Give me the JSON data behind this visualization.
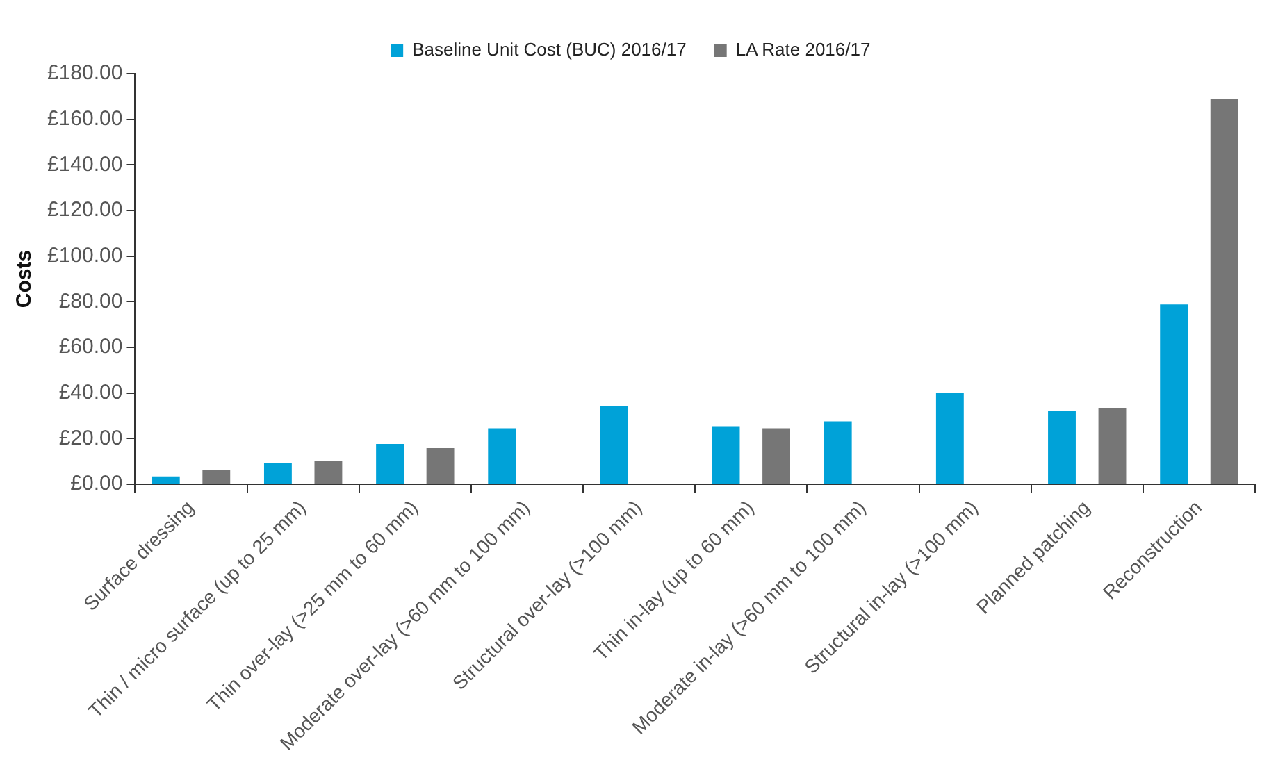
{
  "chart_data": {
    "type": "bar",
    "ylabel": "Costs",
    "categories": [
      "Surface dressing",
      "Thin / micro surface (up to 25 mm)",
      "Thin over-lay (>25 mm to 60 mm)",
      "Moderate over-lay (>60 mm to 100 mm)",
      "Structural over-lay (>100 mm)",
      "Thin in-lay (up to 60 mm)",
      "Moderate in-lay (>60 mm to 100 mm)",
      "Structural in-lay (>100 mm)",
      "Planned patching",
      "Reconstruction"
    ],
    "series": [
      {
        "name": "Baseline Unit Cost (BUC) 2016/17",
        "color": "#00a2d8",
        "values": [
          3.4,
          9.2,
          17.6,
          24.5,
          34.1,
          25.4,
          27.5,
          40.1,
          32.0,
          78.8
        ]
      },
      {
        "name": "LA Rate 2016/17",
        "color": "#767676",
        "values": [
          6.2,
          10.1,
          15.8,
          null,
          null,
          24.5,
          null,
          null,
          33.4,
          169
        ]
      }
    ],
    "ylim": [
      0,
      180
    ],
    "yticks": [
      {
        "value": 0,
        "label": "£0.00"
      },
      {
        "value": 20,
        "label": "£20.00"
      },
      {
        "value": 40,
        "label": "£40.00"
      },
      {
        "value": 60,
        "label": "£60.00"
      },
      {
        "value": 80,
        "label": "£80.00"
      },
      {
        "value": 100,
        "label": "£100.00"
      },
      {
        "value": 120,
        "label": "£120.00"
      },
      {
        "value": 140,
        "label": "£140.00"
      },
      {
        "value": 160,
        "label": "£160.00"
      },
      {
        "value": 180,
        "label": "£180.00"
      }
    ],
    "grid": false,
    "legend": "top"
  }
}
